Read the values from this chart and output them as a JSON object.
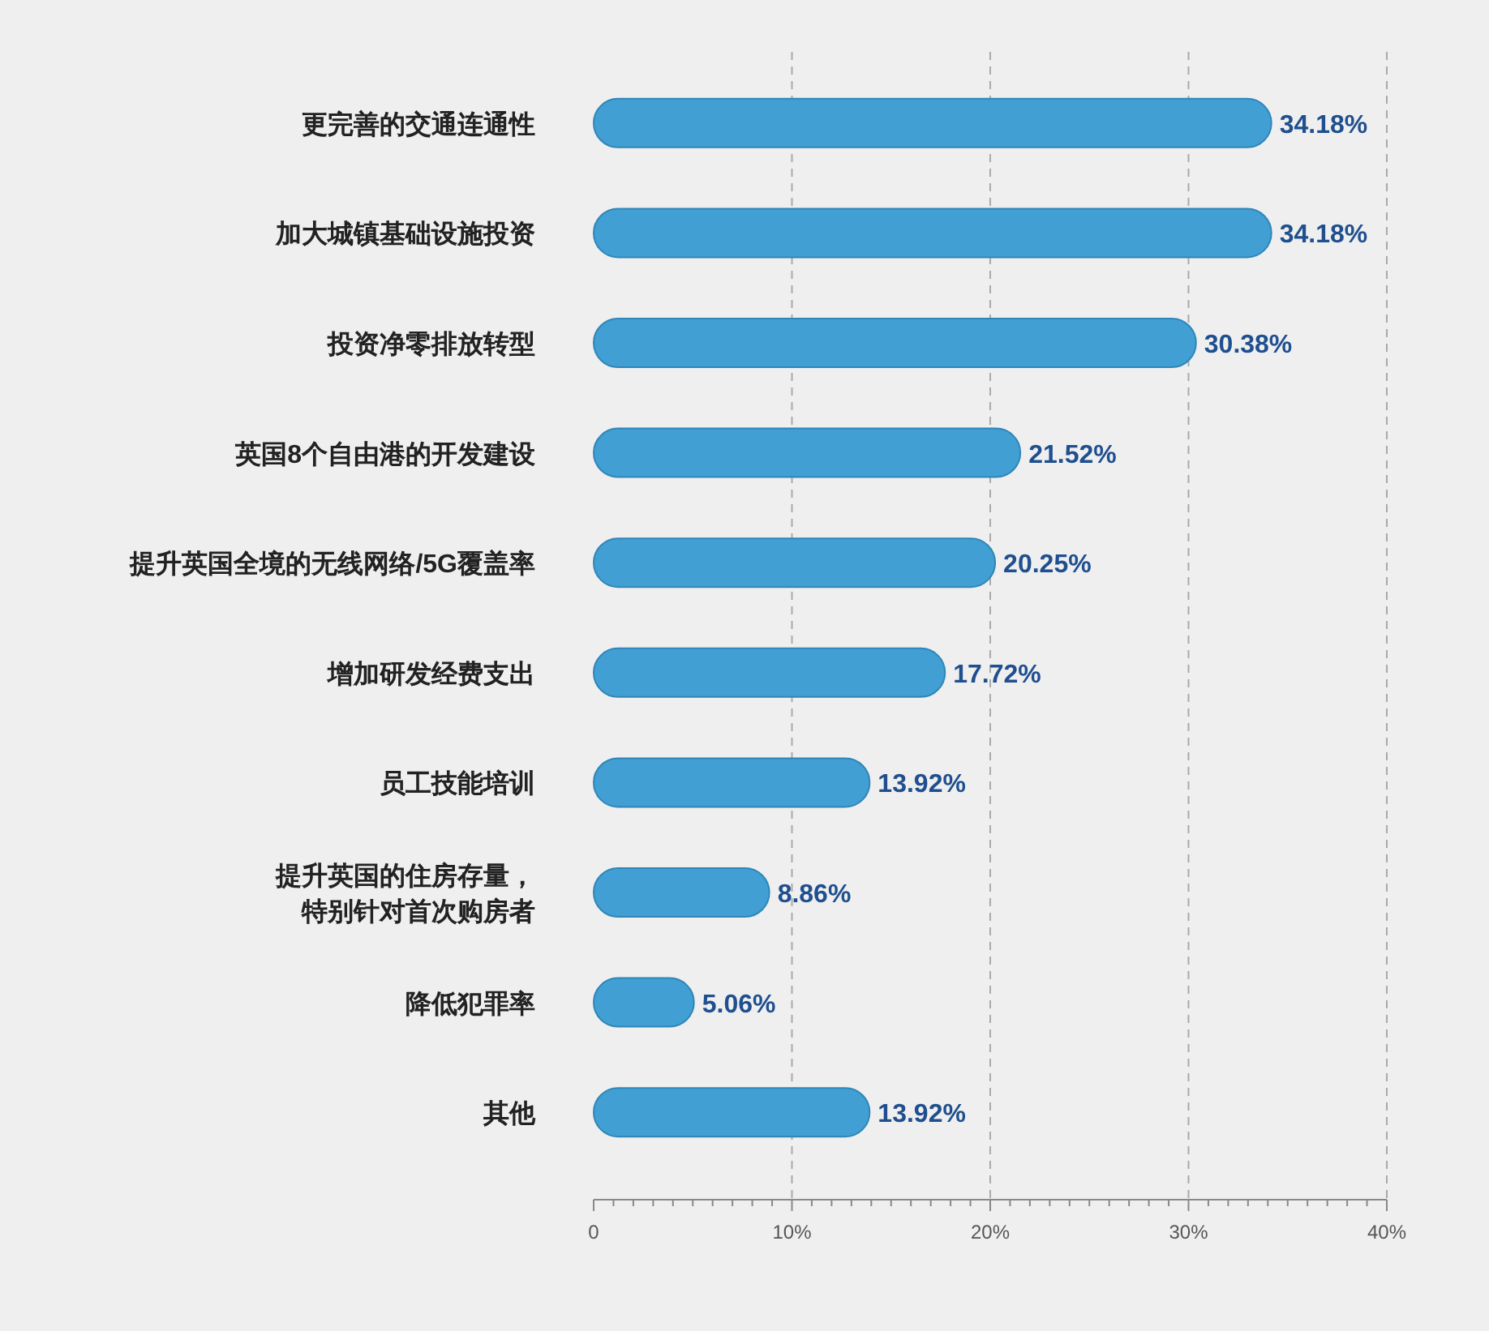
{
  "chart_data": {
    "type": "bar",
    "orientation": "horizontal",
    "categories": [
      "更完善的交通连通性",
      "加大城镇基础设施投资",
      "投资净零排放转型",
      "英国8个自由港的开发建设",
      "提升英国全境的无线网络/5G覆盖率",
      "增加研发经费支出",
      "员工技能培训",
      "提升英国的住房存量，特别针对首次购房者",
      "降低犯罪率",
      "其他"
    ],
    "values": [
      34.18,
      34.18,
      30.38,
      21.52,
      20.25,
      17.72,
      13.92,
      8.86,
      5.06,
      13.92
    ],
    "value_labels": [
      "34.18%",
      "34.18%",
      "30.38%",
      "21.52%",
      "20.25%",
      "17.72%",
      "13.92%",
      "8.86%",
      "5.06%",
      "13.92%"
    ],
    "color": "#419fd3",
    "xlim": [
      0,
      40
    ],
    "xticks": [
      0,
      {
        "value": 1,
        "label": null
      },
      {
        "value": 2,
        "label": null
      },
      {
        "value": 3,
        "label": null
      },
      {
        "value": 4,
        "label": null
      },
      {
        "value": 5,
        "label": null
      },
      {
        "value": 6,
        "label": null
      },
      {
        "value": 7,
        "label": null
      },
      {
        "value": 8,
        "label": null
      },
      {
        "value": 9,
        "label": null
      },
      {
        "value": 10,
        "label": "10%"
      },
      {
        "value": 11,
        "label": null
      },
      {
        "value": 12,
        "label": null
      },
      {
        "value": 13,
        "label": null
      },
      {
        "value": 14,
        "label": null
      },
      {
        "value": 15,
        "label": null
      },
      {
        "value": 16,
        "label": null
      },
      {
        "value": 17,
        "label": null
      },
      {
        "value": 18,
        "label": null
      },
      {
        "value": 19,
        "label": null
      },
      {
        "value": 20,
        "label": "20%"
      },
      {
        "value": 21,
        "label": null
      },
      {
        "value": 22,
        "label": null
      },
      {
        "value": 23,
        "label": null
      },
      {
        "value": 24,
        "label": null
      },
      {
        "value": 25,
        "label": null
      },
      {
        "value": 26,
        "label": null
      },
      {
        "value": 27,
        "label": null
      },
      {
        "value": 28,
        "label": null
      },
      {
        "value": 29,
        "label": null
      },
      {
        "value": 30,
        "label": "30%"
      },
      {
        "value": 31,
        "label": null
      },
      {
        "value": 32,
        "label": null
      },
      {
        "value": 33,
        "label": null
      },
      {
        "value": 34,
        "label": null
      },
      {
        "value": 35,
        "label": null
      },
      {
        "value": 36,
        "label": null
      },
      {
        "value": 37,
        "label": null
      },
      {
        "value": 38,
        "label": null
      },
      {
        "value": 39,
        "label": null
      },
      {
        "value": 40,
        "label": "40%"
      }
    ],
    "grid": "x"
  }
}
